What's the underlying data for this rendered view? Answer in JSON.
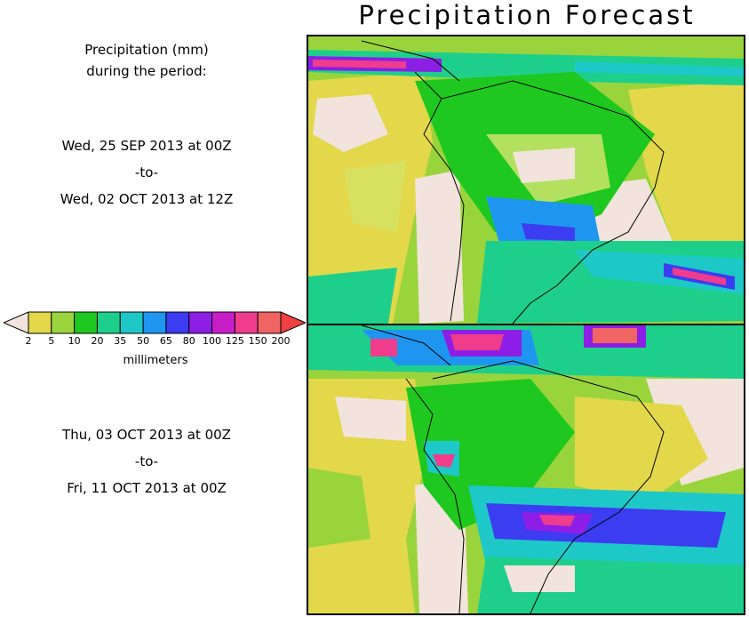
{
  "title": "Precipitation Forecast",
  "period_caption": [
    "Precipitation (mm)",
    "during the period:"
  ],
  "periods": [
    {
      "start": "Wed, 25 SEP 2013 at 00Z",
      "sep": "-to-",
      "end": "Wed, 02 OCT 2013 at 12Z"
    },
    {
      "start": "Thu, 03 OCT 2013 at 00Z",
      "sep": "-to-",
      "end": "Fri, 11 OCT 2013 at 00Z"
    }
  ],
  "legend": {
    "unit": "millimeters",
    "ticks": [
      "2",
      "5",
      "10",
      "20",
      "35",
      "50",
      "65",
      "80",
      "100",
      "125",
      "150",
      "200"
    ],
    "colors": [
      "#f2e4dc",
      "#e2d84a",
      "#9ad43c",
      "#1ec81e",
      "#1ecf8c",
      "#1ec8c8",
      "#1e96f0",
      "#3c3cf0",
      "#8c1ee6",
      "#c81ec8",
      "#f03c8c",
      "#f06464",
      "#f03c3c"
    ]
  }
}
